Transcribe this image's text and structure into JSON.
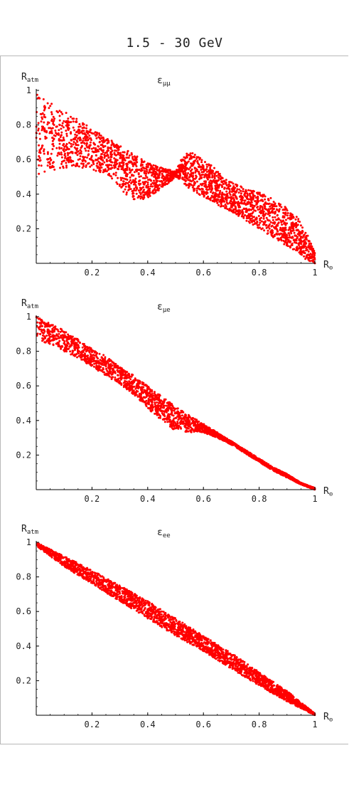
{
  "page": {
    "title": "1.5 - 30 GeV"
  },
  "chart_data": [
    {
      "type": "scatter",
      "panel_label": "εμμ",
      "panel_label_base": "ε",
      "panel_label_sub": "μμ",
      "ylabel_base": "R",
      "ylabel_sub": "atm",
      "xlabel_base": "R",
      "xlabel_sub": "⊙",
      "xlim": [
        0,
        1
      ],
      "ylim": [
        0,
        1
      ],
      "xticks": [
        0.2,
        0.4,
        0.6,
        0.8,
        1
      ],
      "yticks": [
        0.2,
        0.4,
        0.6,
        0.8,
        1
      ],
      "xtick_labels": [
        "0.2",
        "0.4",
        "0.6",
        "0.8",
        "1"
      ],
      "ytick_labels": [
        "0.2",
        "0.4",
        "0.6",
        "0.8",
        "1"
      ],
      "point_color": "#ff0000",
      "series": [
        {
          "x": [
            0.0,
            0.02,
            0.05,
            0.08,
            0.12,
            0.16,
            0.2,
            0.24,
            0.28,
            0.32,
            0.36,
            0.4,
            0.44,
            0.48,
            0.5,
            0.52,
            0.55,
            0.58,
            0.62,
            0.66,
            0.7,
            0.74,
            0.78,
            0.82,
            0.86,
            0.9,
            0.94,
            0.97,
            1.0
          ],
          "y_upper": [
            1.0,
            0.97,
            0.93,
            0.9,
            0.86,
            0.82,
            0.78,
            0.74,
            0.7,
            0.66,
            0.62,
            0.58,
            0.56,
            0.54,
            0.53,
            0.6,
            0.65,
            0.62,
            0.58,
            0.52,
            0.47,
            0.44,
            0.42,
            0.4,
            0.36,
            0.32,
            0.26,
            0.18,
            0.06
          ],
          "y_lower": [
            0.5,
            0.52,
            0.53,
            0.54,
            0.55,
            0.55,
            0.54,
            0.52,
            0.48,
            0.4,
            0.36,
            0.38,
            0.42,
            0.47,
            0.5,
            0.48,
            0.43,
            0.4,
            0.37,
            0.33,
            0.3,
            0.26,
            0.22,
            0.18,
            0.14,
            0.1,
            0.06,
            0.02,
            0.0
          ]
        }
      ]
    },
    {
      "type": "scatter",
      "panel_label": "εμe",
      "panel_label_base": "ε",
      "panel_label_sub": "μe",
      "ylabel_base": "R",
      "ylabel_sub": "atm",
      "xlabel_base": "R",
      "xlabel_sub": "⊙",
      "xlim": [
        0,
        1
      ],
      "ylim": [
        0,
        1
      ],
      "xticks": [
        0.2,
        0.4,
        0.6,
        0.8,
        1
      ],
      "yticks": [
        0.2,
        0.4,
        0.6,
        0.8,
        1
      ],
      "xtick_labels": [
        "0.2",
        "0.4",
        "0.6",
        "0.8",
        "1"
      ],
      "ytick_labels": [
        "0.2",
        "0.4",
        "0.6",
        "0.8",
        "1"
      ],
      "point_color": "#ff0000",
      "series": [
        {
          "x": [
            0.0,
            0.05,
            0.1,
            0.15,
            0.2,
            0.25,
            0.3,
            0.35,
            0.4,
            0.45,
            0.5,
            0.55,
            0.6,
            0.65,
            0.7,
            0.75,
            0.8,
            0.85,
            0.9,
            0.95,
            1.0
          ],
          "y_upper": [
            1.0,
            0.96,
            0.92,
            0.87,
            0.82,
            0.77,
            0.71,
            0.66,
            0.6,
            0.54,
            0.48,
            0.43,
            0.38,
            0.33,
            0.28,
            0.23,
            0.18,
            0.13,
            0.09,
            0.04,
            0.01
          ],
          "y_lower": [
            0.87,
            0.84,
            0.8,
            0.76,
            0.71,
            0.66,
            0.61,
            0.55,
            0.47,
            0.4,
            0.34,
            0.33,
            0.33,
            0.3,
            0.26,
            0.21,
            0.16,
            0.11,
            0.07,
            0.03,
            0.0
          ]
        }
      ]
    },
    {
      "type": "scatter",
      "panel_label": "εee",
      "panel_label_base": "ε",
      "panel_label_sub": "ee",
      "ylabel_base": "R",
      "ylabel_sub": "atm",
      "xlabel_base": "R",
      "xlabel_sub": "⊙",
      "xlim": [
        0,
        1
      ],
      "ylim": [
        0,
        1
      ],
      "xticks": [
        0.2,
        0.4,
        0.6,
        0.8,
        1
      ],
      "yticks": [
        0.2,
        0.4,
        0.6,
        0.8,
        1
      ],
      "xtick_labels": [
        "0.2",
        "0.4",
        "0.6",
        "0.8",
        "1"
      ],
      "ytick_labels": [
        "0.2",
        "0.4",
        "0.6",
        "0.8",
        "1"
      ],
      "point_color": "#ff0000",
      "series": [
        {
          "x": [
            0.0,
            0.1,
            0.2,
            0.3,
            0.4,
            0.5,
            0.6,
            0.7,
            0.8,
            0.9,
            1.0
          ],
          "y_upper": [
            1.0,
            0.92,
            0.84,
            0.75,
            0.66,
            0.56,
            0.46,
            0.36,
            0.25,
            0.14,
            0.01
          ],
          "y_lower": [
            0.98,
            0.86,
            0.76,
            0.66,
            0.56,
            0.46,
            0.37,
            0.27,
            0.17,
            0.08,
            0.0
          ]
        }
      ]
    }
  ]
}
